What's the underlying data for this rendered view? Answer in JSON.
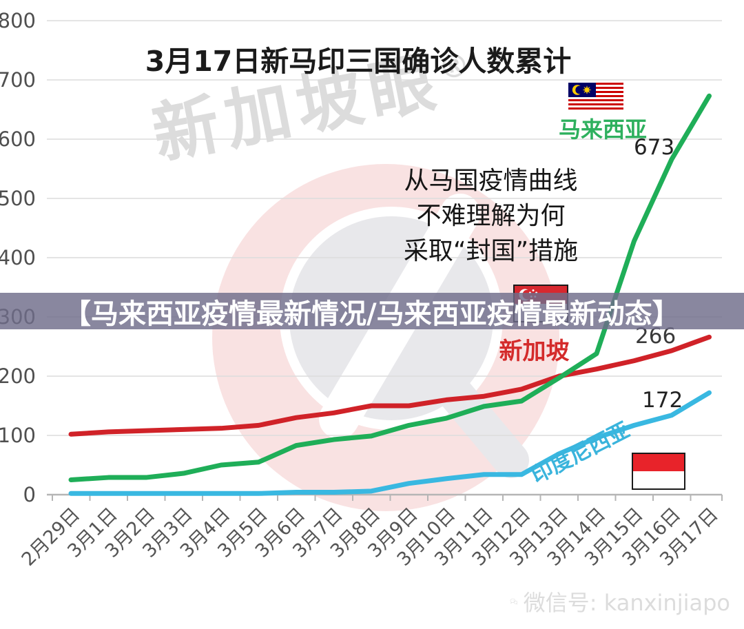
{
  "title": "3月17日新马印三国确诊人数累计",
  "watermark": {
    "brand": "新加坡眼",
    "registered": "®"
  },
  "annotation": {
    "line1": "从马国疫情曲线",
    "line2": "不难理解为何",
    "line3": "采取“封国”措施"
  },
  "overlay_banner": {
    "text": "【马来西亚疫情最新情况/马来西亚疫情最新动态】"
  },
  "footer": {
    "wechat_label": "微信号: kanxinjiapo"
  },
  "colors": {
    "malaysia_line": "#1fae58",
    "singapore_line": "#d02228",
    "indonesia_line": "#39b8e1",
    "grid": "#dcdcdc",
    "axis": "#b5b5b5",
    "tick_label": "#4f4f4f",
    "banner_bg": "#6f6c8a",
    "banner_text": "#ffffff",
    "watermark_pink": "#f9e2e2",
    "watermark_gray": "#e8e8eb"
  },
  "chart_data": {
    "type": "line",
    "title": "3月17日新马印三国确诊人数累计",
    "categories": [
      "2月29日",
      "3月1日",
      "3月2日",
      "3月3日",
      "3月4日",
      "3月5日",
      "3月6日",
      "3月7日",
      "3月8日",
      "3月9日",
      "3月10日",
      "3月11日",
      "3月12日",
      "3月13日",
      "3月14日",
      "3月15日",
      "3月16日",
      "3月17日"
    ],
    "series": [
      {
        "name": "马来西亚",
        "flag": "malaysia-flag-icon",
        "color": "#1fae58",
        "values": [
          25,
          29,
          29,
          36,
          50,
          55,
          83,
          93,
          99,
          117,
          129,
          149,
          158,
          197,
          238,
          428,
          566,
          673
        ],
        "end_label": "673"
      },
      {
        "name": "新加坡",
        "flag": "singapore-flag-icon",
        "color": "#d02228",
        "values": [
          102,
          106,
          108,
          110,
          112,
          117,
          130,
          138,
          150,
          150,
          160,
          166,
          178,
          200,
          212,
          226,
          243,
          266
        ],
        "end_label": "266"
      },
      {
        "name": "印度尼西亚",
        "flag": "indonesia-flag-icon",
        "color": "#39b8e1",
        "values": [
          2,
          2,
          2,
          2,
          2,
          2,
          4,
          4,
          6,
          19,
          27,
          34,
          34,
          69,
          96,
          117,
          134,
          172
        ],
        "end_label": "172"
      }
    ],
    "xlabel": "",
    "ylabel": "",
    "ylim": [
      0,
      800
    ],
    "yticks": [
      0,
      100,
      200,
      300,
      400,
      500,
      600,
      700,
      800
    ],
    "grid": true,
    "legend_position": "inline-labels"
  }
}
